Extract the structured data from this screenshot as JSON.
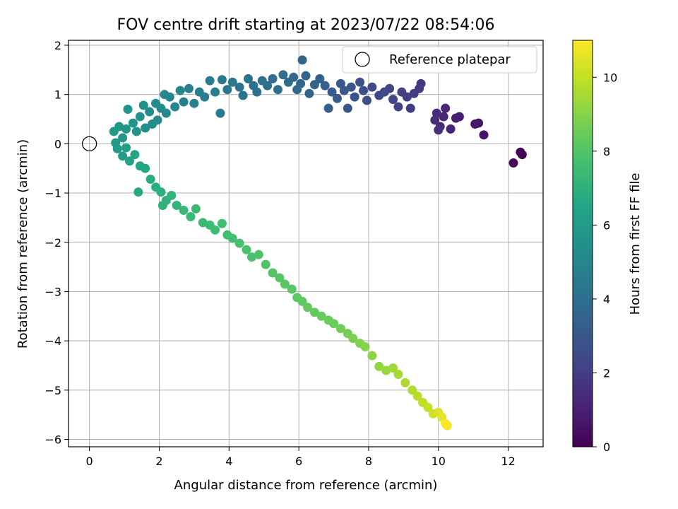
{
  "chart_data": {
    "type": "scatter",
    "title": "FOV centre drift starting at 2023/07/22 08:54:06",
    "xlabel": "Angular distance from reference (arcmin)",
    "ylabel": "Rotation from reference (arcmin)",
    "xlim": [
      -0.6,
      13.0
    ],
    "ylim": [
      -6.15,
      2.1
    ],
    "xticks": [
      0,
      2,
      4,
      6,
      8,
      10,
      12
    ],
    "yticks": [
      -6,
      -5,
      -4,
      -3,
      -2,
      -1,
      0,
      1,
      2
    ],
    "grid": true,
    "legend": {
      "position": "top-right",
      "entries": [
        "Reference platepar"
      ]
    },
    "reference_point": {
      "x": 0,
      "y": 0
    },
    "colorbar": {
      "label": "Hours from first FF file",
      "colormap": "viridis",
      "range": [
        0,
        11
      ],
      "ticks": [
        0,
        2,
        4,
        6,
        8,
        10
      ]
    },
    "series": [
      {
        "color_value": "hours",
        "points": [
          [
            12.35,
            -0.17,
            0.05
          ],
          [
            12.4,
            -0.22,
            0.1
          ],
          [
            12.15,
            -0.39,
            0.2
          ],
          [
            11.3,
            0.18,
            0.6
          ],
          [
            11.15,
            0.42,
            0.7
          ],
          [
            11.05,
            0.4,
            0.75
          ],
          [
            10.6,
            0.55,
            0.9
          ],
          [
            10.5,
            0.52,
            0.95
          ],
          [
            10.35,
            0.3,
            1.1
          ],
          [
            10.2,
            0.72,
            1.2
          ],
          [
            10.15,
            0.55,
            1.25
          ],
          [
            10.05,
            0.35,
            1.3
          ],
          [
            9.95,
            0.62,
            1.4
          ],
          [
            9.9,
            0.48,
            1.45
          ],
          [
            10.0,
            0.28,
            1.5
          ],
          [
            9.5,
            1.22,
            1.8
          ],
          [
            9.45,
            1.12,
            1.85
          ],
          [
            9.3,
            1.02,
            1.95
          ],
          [
            9.2,
            0.72,
            2.0
          ],
          [
            9.1,
            0.95,
            2.05
          ],
          [
            8.95,
            1.05,
            2.1
          ],
          [
            8.85,
            0.75,
            2.15
          ],
          [
            8.7,
            0.9,
            2.2
          ],
          [
            8.6,
            1.12,
            2.25
          ],
          [
            8.45,
            1.05,
            2.3
          ],
          [
            8.3,
            0.98,
            2.4
          ],
          [
            8.1,
            1.15,
            2.5
          ],
          [
            7.95,
            0.88,
            2.6
          ],
          [
            7.85,
            1.08,
            2.65
          ],
          [
            7.75,
            1.25,
            2.7
          ],
          [
            7.6,
            0.95,
            2.8
          ],
          [
            7.5,
            1.15,
            2.85
          ],
          [
            7.4,
            0.72,
            2.9
          ],
          [
            7.3,
            1.08,
            3.0
          ],
          [
            7.2,
            1.22,
            3.05
          ],
          [
            7.1,
            0.92,
            3.1
          ],
          [
            6.95,
            1.05,
            3.15
          ],
          [
            6.85,
            0.72,
            3.2
          ],
          [
            6.75,
            1.18,
            3.3
          ],
          [
            6.6,
            1.32,
            3.35
          ],
          [
            6.45,
            1.2,
            3.4
          ],
          [
            6.3,
            1.02,
            3.5
          ],
          [
            6.2,
            1.38,
            3.55
          ],
          [
            6.1,
            1.7,
            3.6
          ],
          [
            6.05,
            1.22,
            3.65
          ],
          [
            5.95,
            1.1,
            3.7
          ],
          [
            5.85,
            1.35,
            3.75
          ],
          [
            5.7,
            1.25,
            3.8
          ],
          [
            5.55,
            1.4,
            3.85
          ],
          [
            5.4,
            1.1,
            3.9
          ],
          [
            5.25,
            1.32,
            3.95
          ],
          [
            5.1,
            1.18,
            4.0
          ],
          [
            4.95,
            1.28,
            4.05
          ],
          [
            4.8,
            1.05,
            4.1
          ],
          [
            4.7,
            1.18,
            4.15
          ],
          [
            4.55,
            1.32,
            4.2
          ],
          [
            4.4,
            0.98,
            4.25
          ],
          [
            4.3,
            1.15,
            4.3
          ],
          [
            4.1,
            1.25,
            4.35
          ],
          [
            3.95,
            1.1,
            4.4
          ],
          [
            3.8,
            1.3,
            4.45
          ],
          [
            3.75,
            0.62,
            4.5
          ],
          [
            3.6,
            1.05,
            4.55
          ],
          [
            3.45,
            1.28,
            4.6
          ],
          [
            3.3,
            0.95,
            4.65
          ],
          [
            3.15,
            1.05,
            4.7
          ],
          [
            3.0,
            0.82,
            4.8
          ],
          [
            2.85,
            1.12,
            4.85
          ],
          [
            2.7,
            0.85,
            4.9
          ],
          [
            2.6,
            1.08,
            4.95
          ],
          [
            2.45,
            0.75,
            5.0
          ],
          [
            2.3,
            0.95,
            5.05
          ],
          [
            2.2,
            0.62,
            5.1
          ],
          [
            2.15,
            1.0,
            5.15
          ],
          [
            2.05,
            0.72,
            5.2
          ],
          [
            1.95,
            0.48,
            5.25
          ],
          [
            1.9,
            0.82,
            5.3
          ],
          [
            1.8,
            0.4,
            5.35
          ],
          [
            1.72,
            0.65,
            5.4
          ],
          [
            1.6,
            0.32,
            5.45
          ],
          [
            1.55,
            0.78,
            5.5
          ],
          [
            1.45,
            0.55,
            5.55
          ],
          [
            1.35,
            0.25,
            5.6
          ],
          [
            1.25,
            0.42,
            5.65
          ],
          [
            1.1,
            0.7,
            5.7
          ],
          [
            1.05,
            0.3,
            5.75
          ],
          [
            0.95,
            0.12,
            5.8
          ],
          [
            0.85,
            0.35,
            5.85
          ],
          [
            0.7,
            0.25,
            5.9
          ],
          [
            0.75,
            0.02,
            5.95
          ],
          [
            0.8,
            -0.1,
            6.0
          ],
          [
            0.95,
            -0.25,
            6.1
          ],
          [
            1.05,
            -0.08,
            6.2
          ],
          [
            1.15,
            -0.35,
            6.3
          ],
          [
            1.3,
            -0.22,
            6.4
          ],
          [
            1.45,
            -0.45,
            6.5
          ],
          [
            1.6,
            -0.5,
            6.6
          ],
          [
            1.4,
            -0.98,
            6.7
          ],
          [
            1.75,
            -0.72,
            6.8
          ],
          [
            1.9,
            -0.88,
            6.9
          ],
          [
            2.05,
            -0.98,
            7.0
          ],
          [
            2.2,
            -1.15,
            7.05
          ],
          [
            2.1,
            -1.25,
            7.1
          ],
          [
            2.35,
            -1.05,
            7.15
          ],
          [
            2.5,
            -1.25,
            7.2
          ],
          [
            2.7,
            -1.35,
            7.3
          ],
          [
            2.9,
            -1.48,
            7.35
          ],
          [
            3.05,
            -1.32,
            7.4
          ],
          [
            3.25,
            -1.6,
            7.45
          ],
          [
            3.45,
            -1.65,
            7.5
          ],
          [
            3.6,
            -1.75,
            7.55
          ],
          [
            3.8,
            -1.62,
            7.6
          ],
          [
            3.95,
            -1.85,
            7.65
          ],
          [
            4.1,
            -1.92,
            7.7
          ],
          [
            4.3,
            -2.02,
            7.75
          ],
          [
            4.5,
            -2.15,
            7.8
          ],
          [
            4.65,
            -2.3,
            7.85
          ],
          [
            4.85,
            -2.25,
            7.9
          ],
          [
            5.05,
            -2.45,
            7.95
          ],
          [
            5.25,
            -2.62,
            8.0
          ],
          [
            5.45,
            -2.72,
            8.05
          ],
          [
            5.6,
            -2.85,
            8.1
          ],
          [
            5.8,
            -2.95,
            8.15
          ],
          [
            5.95,
            -3.12,
            8.2
          ],
          [
            6.1,
            -3.2,
            8.25
          ],
          [
            6.25,
            -3.32,
            8.3
          ],
          [
            6.45,
            -3.42,
            8.35
          ],
          [
            6.65,
            -3.5,
            8.4
          ],
          [
            6.85,
            -3.58,
            8.45
          ],
          [
            7.0,
            -3.65,
            8.5
          ],
          [
            7.2,
            -3.75,
            8.6
          ],
          [
            7.4,
            -3.85,
            8.7
          ],
          [
            7.55,
            -3.95,
            8.8
          ],
          [
            7.75,
            -4.05,
            8.9
          ],
          [
            7.9,
            -4.12,
            9.0
          ],
          [
            8.1,
            -4.3,
            9.1
          ],
          [
            8.3,
            -4.52,
            9.2
          ],
          [
            8.5,
            -4.6,
            9.3
          ],
          [
            8.7,
            -4.55,
            9.4
          ],
          [
            8.85,
            -4.68,
            9.5
          ],
          [
            9.05,
            -4.85,
            9.6
          ],
          [
            9.25,
            -5.0,
            9.7
          ],
          [
            9.4,
            -5.12,
            9.8
          ],
          [
            9.55,
            -5.25,
            9.9
          ],
          [
            9.7,
            -5.35,
            10.0
          ],
          [
            9.85,
            -5.48,
            10.2
          ],
          [
            10.0,
            -5.45,
            10.4
          ],
          [
            10.1,
            -5.55,
            10.6
          ],
          [
            10.25,
            -5.72,
            10.8
          ],
          [
            10.2,
            -5.68,
            11.0
          ]
        ]
      }
    ]
  }
}
